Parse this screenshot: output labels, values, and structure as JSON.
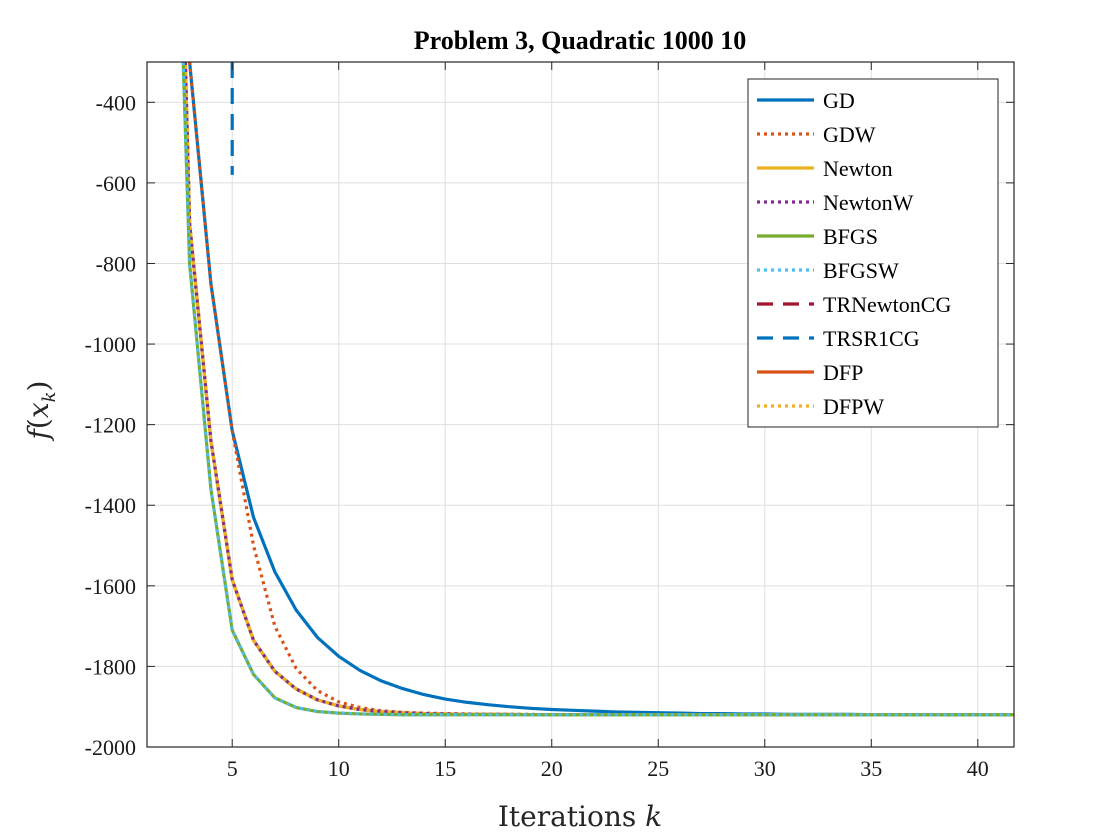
{
  "chart_data": {
    "type": "line",
    "title": "Problem 3, Quadratic 1000 10",
    "xlabel": "Iterations k",
    "ylabel": "f(x_k)",
    "xlim": [
      1,
      41.7
    ],
    "ylim": [
      -2000,
      -300
    ],
    "xticks": [
      5,
      10,
      15,
      20,
      25,
      30,
      35,
      40
    ],
    "yticks": [
      -2000,
      -1800,
      -1600,
      -1400,
      -1200,
      -1000,
      -800,
      -600,
      -400
    ],
    "grid": true,
    "legend_position": "top-right",
    "series": [
      {
        "name": "GD",
        "color": "#0072BD",
        "dash": "solid",
        "x": [
          3,
          4,
          5,
          6,
          7,
          8,
          9,
          10,
          11,
          12,
          13,
          14,
          15,
          16,
          17,
          18,
          19,
          20,
          21,
          22,
          23,
          24,
          25,
          26,
          27,
          28,
          29,
          30,
          31,
          32,
          33,
          34,
          35,
          36,
          37,
          38,
          39,
          40,
          41.7
        ],
        "y": [
          -300,
          -850,
          -1215,
          -1430,
          -1565,
          -1660,
          -1728,
          -1775,
          -1810,
          -1836,
          -1855,
          -1870,
          -1881,
          -1889,
          -1895,
          -1900,
          -1904,
          -1907,
          -1909,
          -1911,
          -1913,
          -1914,
          -1915,
          -1916,
          -1917,
          -1917,
          -1918,
          -1918,
          -1919,
          -1919,
          -1919,
          -1919,
          -1920,
          -1920,
          -1920,
          -1920,
          -1920,
          -1920,
          -1920
        ]
      },
      {
        "name": "GDW",
        "color": "#D95319",
        "dash": "dotted",
        "x": [
          3,
          4,
          5,
          6,
          7,
          8,
          9,
          10,
          11,
          12,
          13,
          14,
          15,
          16,
          17,
          18,
          19,
          20,
          25,
          30,
          35,
          40,
          41.7
        ],
        "y": [
          -300,
          -850,
          -1215,
          -1500,
          -1700,
          -1805,
          -1860,
          -1888,
          -1902,
          -1910,
          -1914,
          -1916,
          -1917,
          -1918,
          -1919,
          -1919,
          -1919,
          -1920,
          -1920,
          -1920,
          -1920,
          -1920,
          -1920
        ]
      },
      {
        "name": "Newton",
        "color": "#EDB120",
        "dash": "solid",
        "x": [
          2.8,
          3,
          4,
          5,
          6,
          7,
          8,
          9,
          10,
          11,
          12,
          13,
          14,
          15,
          20,
          25,
          30,
          35,
          40,
          41.7
        ],
        "y": [
          -300,
          -700,
          -1240,
          -1585,
          -1735,
          -1812,
          -1856,
          -1883,
          -1898,
          -1907,
          -1912,
          -1915,
          -1917,
          -1918,
          -1920,
          -1920,
          -1920,
          -1920,
          -1920,
          -1920
        ]
      },
      {
        "name": "NewtonW",
        "color": "#7E2F8E",
        "dash": "dotted",
        "x": [
          2.8,
          3,
          4,
          5,
          6,
          7,
          8,
          9,
          10,
          11,
          12,
          13,
          14,
          15,
          20,
          25,
          30,
          35,
          40,
          41.7
        ],
        "y": [
          -300,
          -700,
          -1240,
          -1585,
          -1735,
          -1812,
          -1856,
          -1883,
          -1898,
          -1907,
          -1912,
          -1915,
          -1917,
          -1918,
          -1920,
          -1920,
          -1920,
          -1920,
          -1920,
          -1920
        ]
      },
      {
        "name": "BFGS",
        "color": "#77AC30",
        "dash": "solid",
        "x": [
          2.7,
          3,
          4,
          5,
          6,
          7,
          8,
          9,
          10,
          11,
          12,
          13,
          14,
          15,
          20,
          25,
          30,
          35,
          40,
          41.7
        ],
        "y": [
          -300,
          -800,
          -1360,
          -1710,
          -1820,
          -1878,
          -1902,
          -1912,
          -1916,
          -1918,
          -1919,
          -1920,
          -1920,
          -1920,
          -1920,
          -1920,
          -1920,
          -1920,
          -1920,
          -1920
        ]
      },
      {
        "name": "BFGSW",
        "color": "#4DBEEE",
        "dash": "dotted",
        "x": [
          2.7,
          3,
          4,
          5,
          6,
          7,
          8,
          9,
          10,
          11,
          12,
          13,
          14,
          15,
          20,
          25,
          30,
          35,
          40,
          41.7
        ],
        "y": [
          -300,
          -800,
          -1360,
          -1710,
          -1820,
          -1878,
          -1902,
          -1912,
          -1916,
          -1918,
          -1919,
          -1920,
          -1920,
          -1920,
          -1920,
          -1920,
          -1920,
          -1920,
          -1920,
          -1920
        ]
      },
      {
        "name": "TRNewtonCG",
        "color": "#A2142F",
        "dash": "dashed",
        "x": [],
        "y": []
      },
      {
        "name": "TRSR1CG",
        "color": "#0072BD",
        "dash": "dashed",
        "x": [
          5,
          5
        ],
        "y": [
          -300,
          -580
        ]
      },
      {
        "name": "DFP",
        "color": "#D95319",
        "dash": "solid",
        "x": [
          2.8,
          3,
          4,
          5,
          6,
          7,
          8,
          9,
          10,
          11,
          12,
          13,
          14,
          15,
          20,
          25,
          30,
          35,
          40,
          41.7
        ],
        "y": [
          -300,
          -700,
          -1240,
          -1585,
          -1735,
          -1812,
          -1856,
          -1883,
          -1898,
          -1907,
          -1912,
          -1915,
          -1917,
          -1918,
          -1920,
          -1920,
          -1920,
          -1920,
          -1920,
          -1920
        ]
      },
      {
        "name": "DFPW",
        "color": "#EDB120",
        "dash": "dotted",
        "x": [
          2.8,
          3,
          4,
          5,
          6,
          7,
          8,
          9,
          10,
          11,
          12,
          13,
          14,
          15,
          20,
          25,
          30,
          35,
          40,
          41.7
        ],
        "y": [
          -300,
          -700,
          -1240,
          -1585,
          -1735,
          -1812,
          -1856,
          -1883,
          -1898,
          -1907,
          -1912,
          -1915,
          -1917,
          -1918,
          -1920,
          -1920,
          -1920,
          -1920,
          -1920,
          -1920
        ]
      }
    ]
  }
}
